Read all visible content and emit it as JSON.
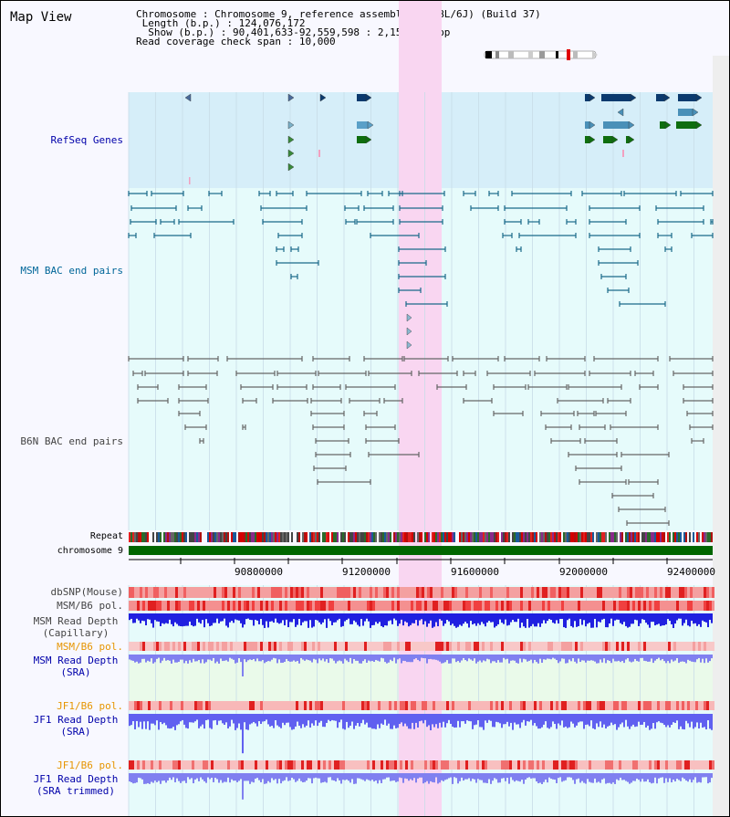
{
  "app": {
    "title": "Map View"
  },
  "info": {
    "chromosome_label": "Chromosome",
    "chromosome_value": "Chromosome 9, reference assembly (C57BL/6J) (Build 37)",
    "length_label": "Length (b.p.)",
    "length_value": "124,076,172",
    "show_label": "Show (b.p.)",
    "show_value": "90,401,633-92,559,598 : 2,157,966 bp",
    "coverage_label": "Read coverage check span",
    "coverage_value": "10,000"
  },
  "tracks": {
    "refseq": "RefSeq Genes",
    "msm_bac": "MSM BAC end pairs",
    "b6n_bac": "B6N BAC end pairs",
    "repeat": "Repeat",
    "chromosome": "chromosome 9",
    "dbsnp": "dbSNP(Mouse)",
    "msm_b6_pol_1": "MSM/B6 pol.",
    "msm_depth_cap_1": "MSM Read Depth",
    "msm_depth_cap_2": "(Capillary)",
    "msm_b6_pol_2": "MSM/B6 pol.",
    "msm_depth_sra_1": "MSM Read Depth",
    "msm_depth_sra_2": "(SRA)",
    "jf1_b6_pol_1": "JF1/B6 pol.",
    "jf1_depth_sra_1": "JF1 Read Depth",
    "jf1_depth_sra_2": "(SRA)",
    "jf1_b6_pol_2": "JF1/B6 pol.",
    "jf1_depth_trim_1": "JF1 Read Depth",
    "jf1_depth_trim_2": "(SRA trimmed)"
  },
  "axis": {
    "ticks": [
      "90800000",
      "91200000",
      "91600000",
      "92000000",
      "92400000"
    ]
  },
  "colors": {
    "refseq_label": "#0000aa",
    "msm_label": "#006699",
    "b6n_label": "#444444",
    "orange_label": "#e69500",
    "blue_label": "#0000aa",
    "highlight": "#f9d6f1",
    "refseq_bg": "#d6eef9",
    "track_bg": "#e6fbfb",
    "chromosome_bar": "#006600"
  }
}
